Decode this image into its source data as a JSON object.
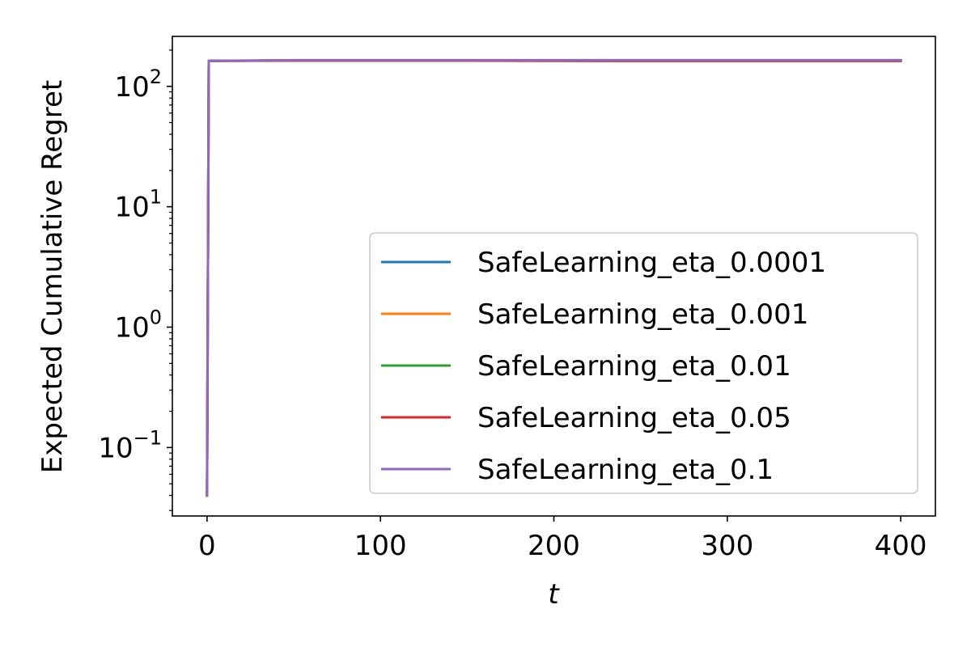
{
  "chart_data": {
    "type": "line",
    "title": "",
    "xlabel": "t",
    "ylabel": "Expected Cumulative Regret",
    "xlim": [
      -20,
      420
    ],
    "ylim": [
      0.027,
      260
    ],
    "yscale": "log",
    "grid": false,
    "legend_position": "lower-right",
    "x_ticks": [
      0,
      100,
      200,
      300,
      400
    ],
    "x_tick_labels": [
      "0",
      "100",
      "200",
      "300",
      "400"
    ],
    "y_ticks": [
      0.1,
      1,
      10,
      100
    ],
    "y_tick_labels": [
      {
        "base": "10",
        "exp": "−1"
      },
      {
        "base": "10",
        "exp": "0"
      },
      {
        "base": "10",
        "exp": "1"
      },
      {
        "base": "10",
        "exp": "2"
      }
    ],
    "series": [
      {
        "name": "SafeLearning_eta_0.0001",
        "color": "#1f77b4",
        "x": [
          0,
          1,
          50,
          150,
          250,
          400
        ],
        "y": [
          0.04,
          163,
          164,
          164,
          164,
          164
        ]
      },
      {
        "name": "SafeLearning_eta_0.001",
        "color": "#ff7f0e",
        "x": [
          0,
          1,
          50,
          150,
          250,
          400
        ],
        "y": [
          0.04,
          163,
          164,
          164,
          164,
          164
        ]
      },
      {
        "name": "SafeLearning_eta_0.01",
        "color": "#2ca02c",
        "x": [
          0,
          1,
          50,
          150,
          250,
          400
        ],
        "y": [
          0.04,
          163,
          164,
          164,
          164,
          164
        ]
      },
      {
        "name": "SafeLearning_eta_0.05",
        "color": "#d62728",
        "x": [
          0,
          1,
          50,
          150,
          250,
          400
        ],
        "y": [
          0.04,
          163,
          163.5,
          163.5,
          162.5,
          162.5
        ]
      },
      {
        "name": "SafeLearning_eta_0.1",
        "color": "#9467bd",
        "x": [
          0,
          1,
          50,
          150,
          250,
          400
        ],
        "y": [
          0.04,
          163,
          165,
          165,
          165,
          165
        ]
      }
    ]
  }
}
